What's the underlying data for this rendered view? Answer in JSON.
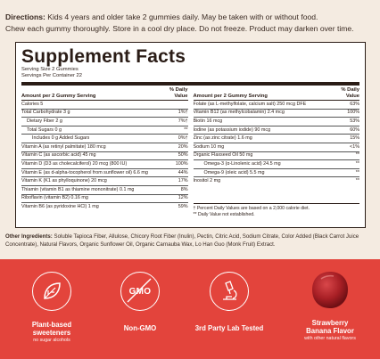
{
  "directions": {
    "label": "Directions:",
    "line1": "Kids 4 years and older take 2 gummies daily. May be taken with or without food.",
    "line2": "Chew each gummy thoroughly. Store in a cool dry place. Do not freeze. Product may darken over time."
  },
  "facts": {
    "title": "Supplement Facts",
    "serving_size": "Serving Size 2 Gummies",
    "servings_per_container": "Servings Per Container 22",
    "col_header_amount": "Amount per 2 Gummy Serving",
    "col_header_dv_line1": "% Daily",
    "col_header_dv_line2": "Value",
    "left_rows": [
      {
        "name": "Calories 5",
        "dv": ""
      },
      {
        "name": "Total Carbohydrate 3 g",
        "dv": "1%†"
      },
      {
        "name": "Dietary Fiber 2 g",
        "dv": "7%†"
      },
      {
        "name": "Total Sugars 0 g",
        "dv": "**"
      },
      {
        "name": "Includes 0 g Added Sugars",
        "dv": "0%†"
      },
      {
        "name": "Vitamin A (as retinyl palmitate) 180 mcg",
        "dv": "20%"
      },
      {
        "name": "Vitamin C (as ascorbic acid) 45 mg",
        "dv": "50%"
      },
      {
        "name": "Vitamin D (D3 as cholecalciferol) 20 mcg (800 IU)",
        "dv": "100%"
      },
      {
        "name": "Vitamin E (as d-alpha-tocopherol from sunflower oil) 6.6 mg",
        "dv": "44%"
      },
      {
        "name": "Vitamin K (K1 as phylloquinone) 20 mcg",
        "dv": "17%"
      },
      {
        "name": "Thiamin (vitamin B1 as thiamine mononitrate) 0.1 mg",
        "dv": "8%"
      },
      {
        "name": "Riboflavin (vitamin B2) 0.16 mg",
        "dv": "12%"
      },
      {
        "name": "Vitamin B6 (as pyridoxine HCl) 1 mg",
        "dv": "59%"
      }
    ],
    "right_rows": [
      {
        "name": "Folate (as L-methylfolate, calcium salt) 250 mcg DFE",
        "dv": "63%"
      },
      {
        "name": "Vitamin B12 (as methylcobalamin) 2.4 mcg",
        "dv": "100%"
      },
      {
        "name": "Biotin 16 mcg",
        "dv": "53%"
      },
      {
        "name": "Iodine (as potassium iodide) 90 mcg",
        "dv": "60%"
      },
      {
        "name": "Zinc (as zinc citrate) 1.6 mg",
        "dv": "15%"
      },
      {
        "name": "Sodium 10 mg",
        "dv": "<1%"
      },
      {
        "name": "Organic Flaxseed Oil 50 mg",
        "dv": "**"
      },
      {
        "name": "Omega-3 (α-Linolenic acid) 24.5 mg",
        "dv": "**"
      },
      {
        "name": "Omega-9 (oleic acid) 5.5 mg",
        "dv": "**"
      },
      {
        "name": "Inositol 2 mg",
        "dv": "**"
      }
    ],
    "note1": "† Percent Daily Values are based on a 2,000 calorie diet.",
    "note2": "** Daily Value not established."
  },
  "ingredients": {
    "label": "Other Ingredients:",
    "text": "Soluble Tapioca Fiber, Allulose, Chicory Root Fiber (Inulin), Pectin, Citric Acid, Sodium Citrate, Color Added (Black Carrot Juice Concentrate), Natural Flavors, Organic Sunflower Oil, Organic Carnauba Wax, Lo Han Guo (Monk Fruit) Extract."
  },
  "features": {
    "plant_label_1": "Plant-based",
    "plant_label_2": "sweeteners",
    "plant_sub": "no sugar alcohols",
    "gmo_icon_text": "GMO",
    "gmo_label": "Non-GMO",
    "lab_label": "3rd Party Lab Tested",
    "flavor_label_1": "Strawberry",
    "flavor_label_2": "Banana Flavor",
    "flavor_sub": "with other natural flavors"
  },
  "colors": {
    "band": "#e3443c",
    "background": "#f4ebe1",
    "gummy": "#b3272a"
  },
  "icons": [
    "leaf-icon",
    "no-gmo-icon",
    "microscope-icon",
    "gummy-image"
  ]
}
